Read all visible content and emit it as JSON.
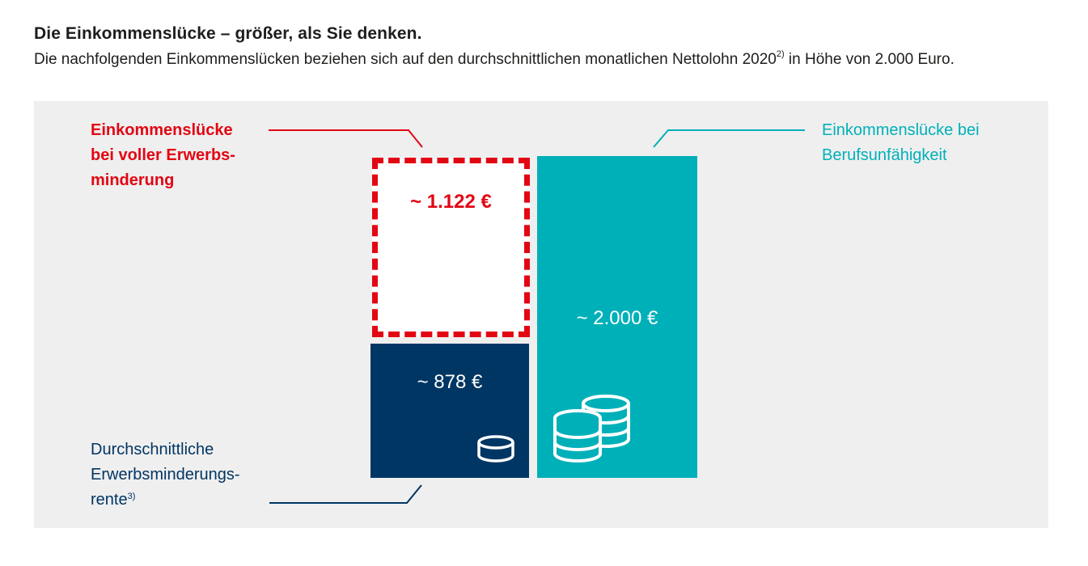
{
  "header": {
    "title": "Die Einkommenslücke – größer, als Sie denken.",
    "subtitle_main": "Die nachfolgenden Einkommenslücken beziehen sich auf den durchschnittlichen monatlichen Nettolohn 2020",
    "subtitle_footnote": "2)",
    "subtitle_end": " in Höhe von 2.000 Euro."
  },
  "chart_data": {
    "type": "bar",
    "stacked": true,
    "categories": [
      "volle Erwerbsminderung",
      "Berufsunfähigkeit"
    ],
    "series": [
      {
        "name": "Durchschnittliche Erwerbsminderungsrente",
        "values": [
          878,
          0
        ]
      },
      {
        "name": "Einkommenslücke bei voller Erwerbsminderung",
        "values": [
          1122,
          0
        ]
      },
      {
        "name": "Einkommenslücke bei Berufsunfähigkeit",
        "values": [
          0,
          2000
        ]
      }
    ],
    "data_labels": {
      "gap_full": "~ 1.122 €",
      "pension": "~ 878 €",
      "gap_bu": "~ 2.000 €"
    },
    "annotations": {
      "gap_full": [
        "Einkommenslücke",
        "bei voller Erwerbs-",
        "minderung"
      ],
      "gap_bu": [
        "Einkommenslücke bei",
        "Berufsunfähigkeit"
      ],
      "pension": [
        "Durchschnittliche",
        "Erwerbsminderungs-",
        "rente"
      ],
      "pension_footnote": "3)"
    },
    "colors": {
      "gap_full": "#e30613",
      "pension": "#003663",
      "gap_bu": "#00b0b9",
      "panel": "#efefef"
    },
    "icons": [
      "coin-single-icon",
      "coin-stacks-icon"
    ]
  }
}
